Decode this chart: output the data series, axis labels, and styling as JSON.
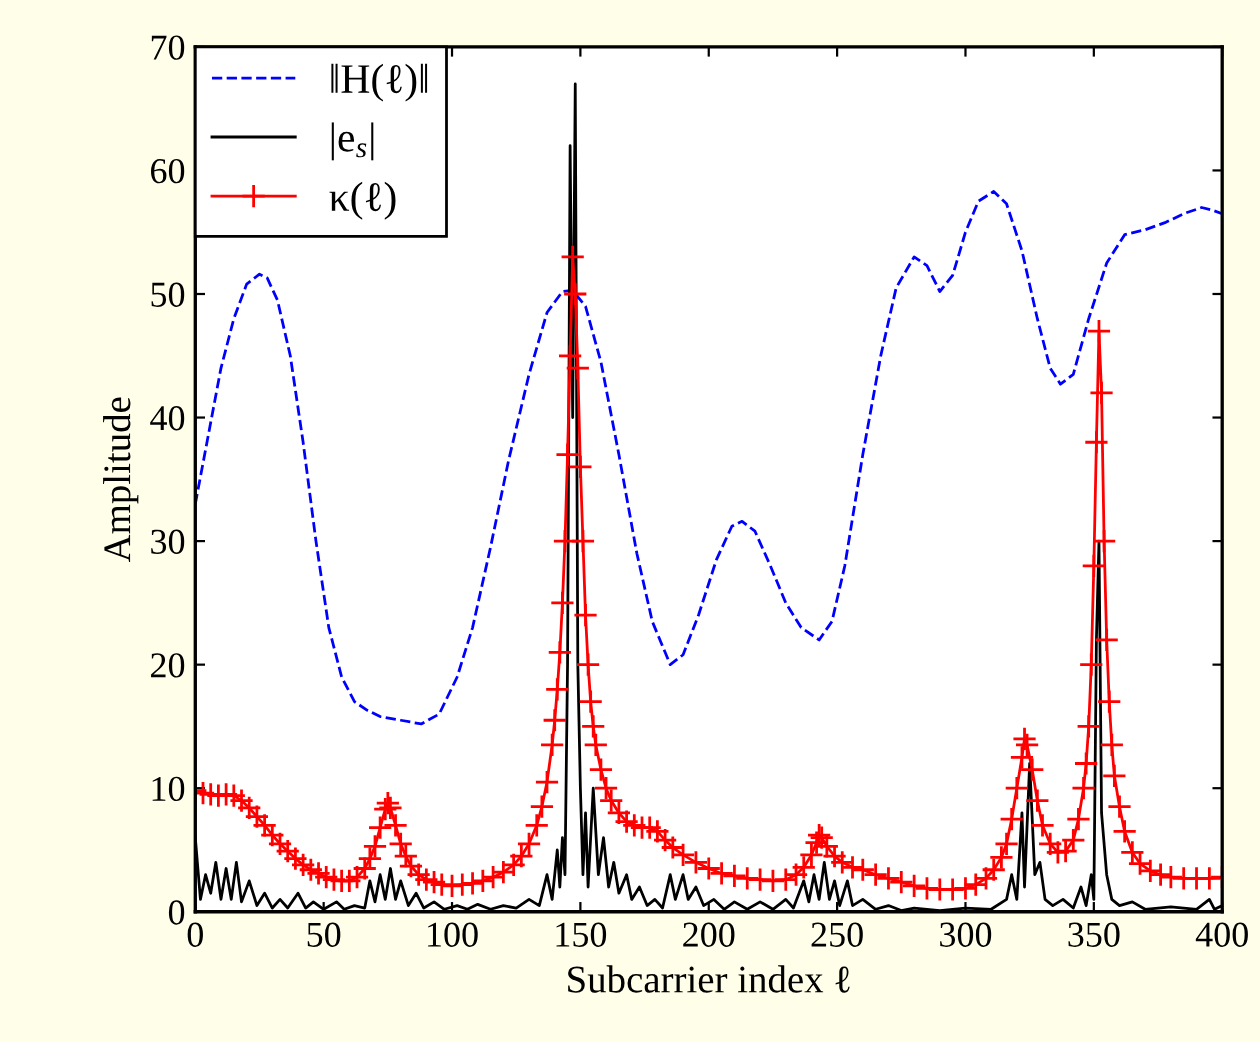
{
  "chart_data": {
    "type": "line",
    "xlabel": "Subcarrier index ℓ",
    "ylabel": "Amplitude",
    "xlim": [
      0,
      400
    ],
    "xticks": [
      0,
      50,
      100,
      150,
      200,
      250,
      300,
      350,
      400
    ],
    "ylim": [
      0,
      70
    ],
    "yticks": [
      0,
      10,
      20,
      30,
      40,
      50,
      60,
      70
    ],
    "grid": false,
    "legend": "top left",
    "series": [
      {
        "name": "‖H(ℓ)‖",
        "color": "#0000ff",
        "line_style": "dashed",
        "marker": "none",
        "x": [
          0,
          5,
          10,
          15,
          20,
          25,
          28,
          32,
          37,
          42,
          47,
          52,
          57,
          62,
          67,
          72,
          80,
          88,
          95,
          102,
          108,
          115,
          122,
          130,
          137,
          143,
          147,
          152,
          158,
          165,
          172,
          178,
          185,
          190,
          196,
          203,
          209,
          213,
          218,
          224,
          230,
          236,
          243,
          248,
          253,
          260,
          267,
          273,
          280,
          285,
          290,
          295,
          300,
          305,
          311,
          316,
          322,
          328,
          333,
          337,
          342,
          348,
          355,
          362,
          370,
          378,
          385,
          392,
          396,
          400
        ],
        "values": [
          33,
          38.5,
          44,
          48,
          50.8,
          51.6,
          51.3,
          49.5,
          45,
          38,
          30,
          23,
          19,
          17,
          16.3,
          15.8,
          15.5,
          15.2,
          16,
          19,
          23,
          29.5,
          36.5,
          43.5,
          48.5,
          50.2,
          50.3,
          49,
          44.5,
          37,
          29,
          23.5,
          20,
          20.8,
          24,
          28.5,
          31.2,
          31.6,
          30.8,
          28,
          25,
          23,
          22,
          23.5,
          28,
          37,
          45,
          50.5,
          53,
          52.3,
          50.2,
          51.5,
          55,
          57.5,
          58.3,
          57.3,
          53.5,
          48,
          44,
          42.7,
          43.5,
          48,
          52.5,
          54.8,
          55.2,
          55.8,
          56.5,
          57,
          56.8,
          56.5
        ]
      },
      {
        "name": "|e$_{s}$|",
        "color": "#000000",
        "line_style": "solid",
        "marker": "none",
        "x": [
          0,
          2,
          4,
          6,
          8,
          10,
          12,
          14,
          16,
          18,
          21,
          24,
          27,
          30,
          33,
          36,
          40,
          43,
          46,
          50,
          55,
          58,
          62,
          66,
          68,
          70,
          72,
          74,
          76,
          78,
          80,
          83,
          86,
          89,
          93,
          97,
          102,
          106,
          110,
          115,
          120,
          125,
          130,
          134,
          137,
          139,
          141,
          142,
          143,
          144,
          145,
          146,
          147,
          148,
          149,
          150,
          151,
          152,
          153,
          155,
          157,
          159,
          161,
          163,
          165,
          168,
          170,
          173,
          176,
          179,
          182,
          185,
          187,
          190,
          192,
          195,
          198,
          202,
          206,
          210,
          215,
          220,
          225,
          230,
          233,
          237,
          239,
          241,
          243,
          245,
          247,
          249,
          251,
          254,
          256,
          260,
          265,
          270,
          275,
          280,
          290,
          300,
          310,
          316,
          318,
          320,
          322,
          323,
          325,
          327,
          329,
          331,
          334,
          338,
          342,
          345,
          347,
          349,
          350,
          351,
          352,
          353,
          355,
          357,
          360,
          365,
          370,
          380,
          390,
          395,
          397,
          400
        ],
        "values": [
          6,
          1,
          3,
          1.5,
          4,
          1,
          3.5,
          1,
          4,
          0.8,
          2.5,
          0.5,
          1.5,
          0.3,
          1,
          0.3,
          1.5,
          0.3,
          0.8,
          0.2,
          0.8,
          0.2,
          0.5,
          0.3,
          2.5,
          0.8,
          3,
          1,
          3.5,
          1,
          2.5,
          0.5,
          1.5,
          0.3,
          0.8,
          0.2,
          0.5,
          0.2,
          0.6,
          0.2,
          0.5,
          0.3,
          1,
          0.5,
          3,
          1,
          5,
          2,
          6,
          3,
          20,
          62,
          40,
          67,
          20,
          10,
          3,
          8,
          2,
          10,
          3,
          6,
          2,
          4,
          1.5,
          3,
          1,
          2,
          0.5,
          1,
          0.3,
          3,
          1,
          3,
          1,
          2,
          0.5,
          1,
          0.2,
          0.8,
          0.2,
          0.8,
          0.2,
          1,
          0.3,
          2.5,
          0.8,
          3,
          1,
          4,
          1,
          2.5,
          0.5,
          2.5,
          0.5,
          1,
          0.2,
          0.5,
          0.1,
          0.3,
          0.1,
          0.3,
          0.2,
          1,
          3,
          1,
          8,
          2,
          12,
          3,
          4,
          1,
          0.5,
          1,
          0.3,
          2,
          0.5,
          3,
          1,
          22,
          30,
          8,
          3,
          1,
          0.5,
          0.8,
          0.2,
          0.4,
          0.2,
          1,
          0.2,
          0.5
        ]
      },
      {
        "name": "κ(ℓ)",
        "color": "#ff0000",
        "line_style": "solid",
        "marker": "cross",
        "x": [
          0,
          3,
          6,
          9,
          12,
          15,
          18,
          21,
          24,
          27,
          30,
          33,
          36,
          39,
          42,
          45,
          48,
          51,
          54,
          57,
          60,
          63,
          66,
          68,
          70,
          72,
          74,
          75,
          76,
          78,
          80,
          82,
          84,
          87,
          90,
          93,
          96,
          100,
          104,
          108,
          112,
          116,
          120,
          124,
          127,
          130,
          133,
          135,
          137,
          139,
          140,
          141,
          142,
          143,
          144,
          145,
          146,
          147,
          148,
          149,
          150,
          151,
          152,
          153,
          154,
          155,
          156,
          158,
          160,
          162,
          165,
          168,
          171,
          174,
          177,
          180,
          183,
          186,
          190,
          195,
          200,
          205,
          210,
          215,
          220,
          225,
          230,
          234,
          237,
          240,
          242,
          243,
          244,
          246,
          249,
          252,
          256,
          260,
          265,
          270,
          275,
          280,
          285,
          290,
          295,
          300,
          304,
          308,
          311,
          314,
          316,
          318,
          320,
          322,
          323,
          324,
          326,
          328,
          330,
          333,
          336,
          339,
          342,
          344,
          346,
          347,
          348,
          349,
          350,
          351,
          352,
          353,
          354,
          355,
          356,
          357,
          358,
          360,
          362,
          365,
          368,
          372,
          376,
          380,
          385,
          390,
          395,
          400
        ],
        "values": [
          9.8,
          9.6,
          9.5,
          9.4,
          9.5,
          9.4,
          9.0,
          8.4,
          7.7,
          7.0,
          6.2,
          5.5,
          4.9,
          4.3,
          3.8,
          3.4,
          3.1,
          2.8,
          2.6,
          2.5,
          2.5,
          2.8,
          3.5,
          4.3,
          5.3,
          6.8,
          8.3,
          8.8,
          8.4,
          7.0,
          5.5,
          4.5,
          3.7,
          3.0,
          2.6,
          2.4,
          2.2,
          2.1,
          2.2,
          2.3,
          2.5,
          2.8,
          3.2,
          3.8,
          4.5,
          5.5,
          7.0,
          8.5,
          10.5,
          13.5,
          15.5,
          18,
          21,
          25,
          30,
          37,
          45,
          53,
          50,
          44,
          36,
          30,
          24,
          20,
          17,
          15,
          13.5,
          11.5,
          10,
          9,
          8,
          7.3,
          7,
          6.8,
          6.8,
          6.5,
          5.8,
          5.2,
          4.6,
          4,
          3.5,
          3.1,
          2.9,
          2.7,
          2.6,
          2.5,
          2.6,
          3,
          3.6,
          4.6,
          5.6,
          6.2,
          6,
          5.3,
          4.5,
          4,
          3.6,
          3.4,
          3.0,
          2.7,
          2.4,
          2.1,
          1.9,
          1.8,
          1.8,
          1.9,
          2.2,
          2.7,
          3.4,
          4.4,
          5.5,
          7.5,
          10,
          12.5,
          14,
          13.5,
          11.5,
          9,
          7,
          5.5,
          4.8,
          4.9,
          5.8,
          7.5,
          10,
          12,
          15,
          20,
          28,
          38,
          47,
          42,
          30,
          22,
          17,
          13.5,
          11,
          8.5,
          6.5,
          4.8,
          3.9,
          3.3,
          3.0,
          2.8,
          2.7,
          2.7,
          2.7,
          2.8
        ]
      }
    ]
  }
}
